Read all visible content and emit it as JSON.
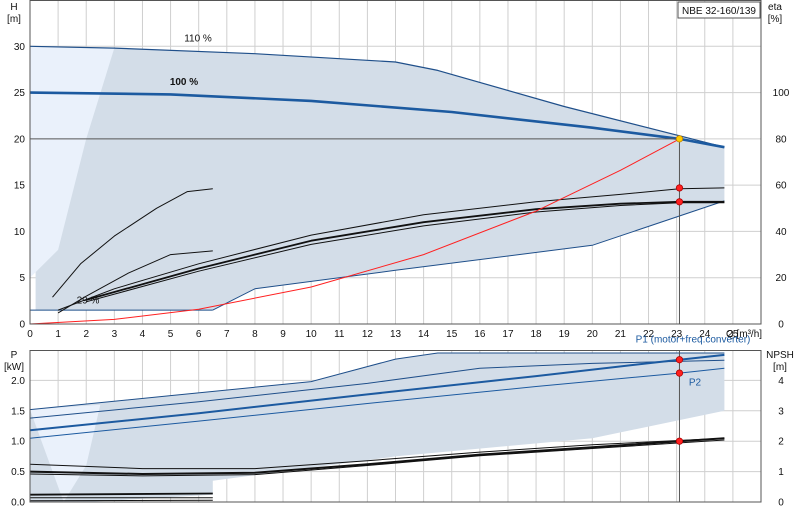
{
  "chart_data": [
    {
      "id": "head",
      "type": "line",
      "title_box": "NBE 32-160/139",
      "y_title": "H",
      "y_unit": "[m]",
      "y2_title": "eta",
      "y2_unit": "[%]",
      "x_label": "Q [m³/h]",
      "xlim": [
        0,
        26
      ],
      "ylim": [
        0,
        35
      ],
      "y2lim": [
        0,
        140
      ],
      "x_ticks": [
        0,
        1,
        2,
        3,
        4,
        5,
        6,
        7,
        8,
        9,
        10,
        11,
        12,
        13,
        14,
        15,
        16,
        17,
        18,
        19,
        20,
        21,
        22,
        23,
        24,
        25
      ],
      "y_ticks": [
        0,
        5,
        10,
        15,
        20,
        25,
        30
      ],
      "y2_ticks": [
        0,
        20,
        40,
        60,
        80,
        100
      ],
      "grid": true,
      "labels": [
        "110 %",
        "100 %",
        "29 %"
      ],
      "colors": {
        "envelope": "#d3dde8",
        "edge": "#1f4f8a",
        "main": "#1c5aa0",
        "system": "#ff2020",
        "point": "#ff2020",
        "duty": "#ffcc00"
      },
      "envelope_fill": [
        [
          0,
          30
        ],
        [
          3,
          29.8
        ],
        [
          8,
          29.2
        ],
        [
          13,
          28.3
        ],
        [
          14.5,
          27.4
        ],
        [
          19,
          23.5
        ],
        [
          24.7,
          19.1
        ],
        [
          24.7,
          13.3
        ],
        [
          20,
          8.5
        ],
        [
          13,
          5.8
        ],
        [
          8,
          3.8
        ],
        [
          6.5,
          1.5
        ],
        [
          3,
          1.5
        ],
        [
          0.2,
          1.5
        ],
        [
          0.2,
          30
        ]
      ],
      "light_fill": [
        [
          0,
          30
        ],
        [
          3,
          29.8
        ],
        [
          2,
          20
        ],
        [
          1,
          8
        ],
        [
          0,
          5
        ]
      ],
      "series": [
        {
          "name": "110 %",
          "width": 1.2,
          "color": "#1f4f8a",
          "points": [
            [
              0,
              30
            ],
            [
              3,
              29.8
            ],
            [
              8,
              29.2
            ],
            [
              13,
              28.3
            ],
            [
              14.5,
              27.4
            ],
            [
              19,
              23.5
            ],
            [
              24.7,
              19.1
            ]
          ]
        },
        {
          "name": "100 %",
          "width": 2.6,
          "color": "#1c5aa0",
          "points": [
            [
              0,
              25
            ],
            [
              5,
              24.8
            ],
            [
              10,
              24.1
            ],
            [
              15,
              22.9
            ],
            [
              20,
              21.2
            ],
            [
              23.1,
              20
            ],
            [
              24.7,
              19.1
            ]
          ]
        },
        {
          "name": "",
          "width": 1,
          "color": "#1f4f8a",
          "points": [
            [
              6.5,
              1.5
            ],
            [
              8,
              3.8
            ],
            [
              13,
              5.8
            ],
            [
              20,
              8.5
            ],
            [
              24.7,
              13.3
            ]
          ]
        },
        {
          "name": "",
          "width": 1,
          "color": "#1f4f8a",
          "points": [
            [
              0,
              1.5
            ],
            [
              6.5,
              1.5
            ]
          ]
        },
        {
          "name": "",
          "width": 1,
          "color": "#111",
          "points": [
            [
              0.8,
              2.9
            ],
            [
              1.8,
              6.5
            ],
            [
              3,
              9.5
            ],
            [
              4.5,
              12.5
            ],
            [
              5.6,
              14.3
            ],
            [
              6.5,
              14.6
            ]
          ]
        },
        {
          "name": "",
          "width": 1,
          "color": "#111",
          "points": [
            [
              1,
              1.2
            ],
            [
              2,
              3
            ],
            [
              3.5,
              5.5
            ],
            [
              5,
              7.5
            ],
            [
              6.5,
              7.9
            ]
          ]
        },
        {
          "name": "",
          "width": 1,
          "color": "#111",
          "points": [
            [
              1,
              1.5
            ],
            [
              3,
              3.8
            ],
            [
              6,
              6.5
            ],
            [
              10,
              9.6
            ],
            [
              14,
              11.8
            ],
            [
              18,
              13.2
            ],
            [
              21,
              14
            ],
            [
              23.1,
              14.6
            ],
            [
              24.7,
              14.7
            ]
          ]
        },
        {
          "name": "",
          "width": 1.8,
          "color": "#111",
          "points": [
            [
              2,
              2.6
            ],
            [
              6,
              6
            ],
            [
              10,
              9
            ],
            [
              14,
              11
            ],
            [
              18,
              12.4
            ],
            [
              21,
              13
            ],
            [
              23.1,
              13.2
            ],
            [
              24.7,
              13.2
            ]
          ]
        },
        {
          "name": "",
          "width": 1,
          "color": "#111",
          "points": [
            [
              2,
              2.4
            ],
            [
              6,
              5.7
            ],
            [
              10,
              8.6
            ],
            [
              14,
              10.6
            ],
            [
              18,
              12.1
            ],
            [
              21,
              12.8
            ],
            [
              23.1,
              13.1
            ],
            [
              24.7,
              13.1
            ]
          ]
        },
        {
          "name": "",
          "width": 1,
          "color": "#ff2020",
          "points": [
            [
              0,
              0
            ],
            [
              3,
              0.5
            ],
            [
              6,
              1.6
            ],
            [
              10,
              4
            ],
            [
              14,
              7.5
            ],
            [
              18,
              12.2
            ],
            [
              21,
              16.6
            ],
            [
              23.1,
              20
            ]
          ]
        }
      ],
      "points": [
        [
          23.1,
          20,
          "duty"
        ],
        [
          23.1,
          14.7,
          "point"
        ],
        [
          23.1,
          13.2,
          "point"
        ]
      ]
    },
    {
      "id": "power",
      "type": "line",
      "y_title": "P",
      "y_unit": "[kW]",
      "y2_title": "NPSH",
      "y2_unit": "[m]",
      "xlim": [
        0,
        26
      ],
      "ylim": [
        0,
        2.5
      ],
      "y2lim": [
        0,
        5
      ],
      "y_ticks": [
        0,
        0.5,
        1.0,
        1.5,
        2.0
      ],
      "y_tick_labels": [
        "0.0",
        "0.5",
        "1.0",
        "1.5",
        "2.0"
      ],
      "y2_ticks": [
        0,
        1,
        2,
        3,
        4
      ],
      "grid": true,
      "labels": [
        "P1 (motor+freq.converter)",
        "P2"
      ],
      "envelope_fill": [
        [
          0,
          1.52
        ],
        [
          5,
          1.75
        ],
        [
          10,
          1.98
        ],
        [
          13,
          2.35
        ],
        [
          14.5,
          2.45
        ],
        [
          24.7,
          2.45
        ],
        [
          24.7,
          1.5
        ],
        [
          20,
          1.05
        ],
        [
          13,
          0.75
        ],
        [
          6.5,
          0.35
        ],
        [
          6.5,
          0.12
        ],
        [
          2,
          0
        ],
        [
          0,
          0
        ]
      ],
      "light_fill": [
        [
          0,
          1.52
        ],
        [
          2.5,
          1.6
        ],
        [
          2,
          0.6
        ],
        [
          1.2,
          0
        ]
      ],
      "series": [
        {
          "name": "P1 (motor+freq.converter)",
          "width": 1,
          "color": "#1f4f8a",
          "points": [
            [
              0,
              1.52
            ],
            [
              5,
              1.75
            ],
            [
              10,
              1.98
            ],
            [
              13,
              2.35
            ],
            [
              14.5,
              2.45
            ],
            [
              24.7,
              2.45
            ]
          ]
        },
        {
          "name": "",
          "width": 1,
          "color": "#1f4f8a",
          "points": [
            [
              0,
              1.38
            ],
            [
              6,
              1.65
            ],
            [
              12,
              1.95
            ],
            [
              16,
              2.2
            ],
            [
              20,
              2.28
            ],
            [
              24.7,
              2.33
            ]
          ]
        },
        {
          "name": "",
          "width": 2,
          "color": "#1c5aa0",
          "points": [
            [
              0,
              1.18
            ],
            [
              6,
              1.46
            ],
            [
              12,
              1.77
            ],
            [
              18,
              2.07
            ],
            [
              23.1,
              2.34
            ],
            [
              24.7,
              2.42
            ]
          ]
        },
        {
          "name": "P2",
          "width": 1,
          "color": "#1c5aa0",
          "points": [
            [
              0,
              1.05
            ],
            [
              6,
              1.33
            ],
            [
              12,
              1.62
            ],
            [
              18,
              1.9
            ],
            [
              23.1,
              2.12
            ],
            [
              24.7,
              2.2
            ]
          ]
        },
        {
          "name": "",
          "width": 1,
          "color": "#111",
          "points": [
            [
              0,
              0.62
            ],
            [
              4,
              0.55
            ],
            [
              8,
              0.55
            ],
            [
              12,
              0.68
            ],
            [
              16,
              0.82
            ],
            [
              20,
              0.94
            ],
            [
              24.7,
              1.05
            ]
          ]
        },
        {
          "name": "",
          "width": 2,
          "color": "#111",
          "points": [
            [
              0,
              0.5
            ],
            [
              4,
              0.46
            ],
            [
              8,
              0.48
            ],
            [
              12,
              0.62
            ],
            [
              16,
              0.78
            ],
            [
              20,
              0.9
            ],
            [
              23.1,
              1.0
            ],
            [
              24.7,
              1.05
            ]
          ]
        },
        {
          "name": "",
          "width": 1,
          "color": "#111",
          "points": [
            [
              0,
              0.46
            ],
            [
              4,
              0.43
            ],
            [
              8,
              0.45
            ],
            [
              12,
              0.6
            ],
            [
              16,
              0.76
            ],
            [
              20,
              0.88
            ],
            [
              24.7,
              1.02
            ]
          ]
        },
        {
          "name": "",
          "width": 1.8,
          "color": "#111",
          "points": [
            [
              0,
              0.12
            ],
            [
              6.5,
              0.14
            ]
          ]
        },
        {
          "name": "",
          "width": 1,
          "color": "#111",
          "points": [
            [
              0,
              0.07
            ],
            [
              6.5,
              0.07
            ]
          ]
        },
        {
          "name": "",
          "width": 1,
          "color": "#111",
          "points": [
            [
              0,
              0.02
            ],
            [
              6.5,
              0.03
            ]
          ]
        }
      ],
      "points": [
        [
          23.1,
          2.34,
          "point"
        ],
        [
          23.1,
          2.12,
          "point"
        ],
        [
          23.1,
          1.0,
          "point"
        ]
      ]
    }
  ]
}
